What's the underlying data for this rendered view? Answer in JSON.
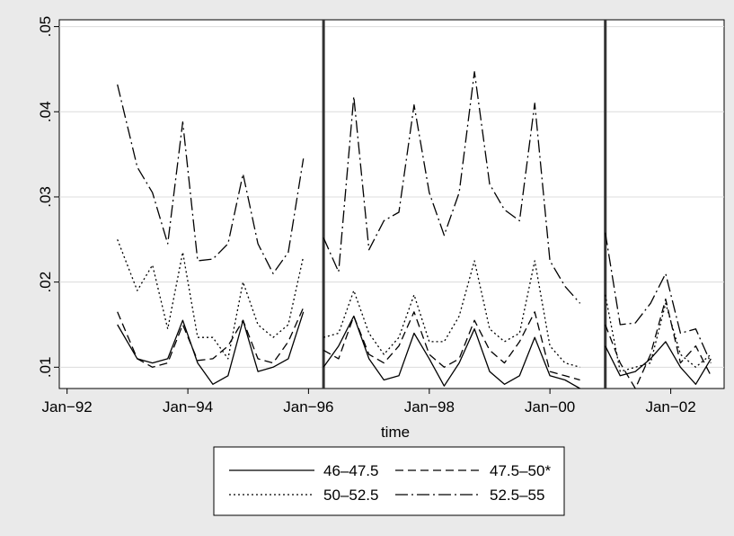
{
  "chart_data": {
    "type": "line",
    "xlabel": "time",
    "ylabel": "",
    "ylim": [
      0.0075,
      0.0508
    ],
    "yticks": [
      {
        "value": 0.01,
        "label": ".01"
      },
      {
        "value": 0.02,
        "label": ".02"
      },
      {
        "value": 0.03,
        "label": ".03"
      },
      {
        "value": 0.04,
        "label": ".04"
      },
      {
        "value": 0.05,
        "label": ".05"
      }
    ],
    "xlim": [
      "1991-11-15",
      "2002-11-20"
    ],
    "xticks": [
      {
        "value": "1992-01-01",
        "label": "Jan−92"
      },
      {
        "value": "1994-01-01",
        "label": "Jan−94"
      },
      {
        "value": "1996-01-01",
        "label": "Jan−96"
      },
      {
        "value": "1998-01-01",
        "label": "Jan−98"
      },
      {
        "value": "2000-01-01",
        "label": "Jan−00"
      },
      {
        "value": "2002-01-01",
        "label": "Jan−02"
      }
    ],
    "vertical_lines": [
      "1996-04-01",
      "2000-12-01"
    ],
    "grid": true,
    "legend_position": "bottom",
    "series": [
      {
        "name": "46‒47.5",
        "dash": "solid",
        "segments": [
          {
            "x": [
              "1992-11-01",
              "1993-03-01",
              "1993-06-01",
              "1993-09-01",
              "1993-12-01",
              "1994-03-01",
              "1994-06-01",
              "1994-09-01",
              "1994-12-01",
              "1995-03-01",
              "1995-06-01",
              "1995-09-01",
              "1995-12-01"
            ],
            "y": [
              0.015,
              0.011,
              0.0105,
              0.011,
              0.0155,
              0.0105,
              0.008,
              0.009,
              0.0155,
              0.0095,
              0.01,
              0.011,
              0.0165
            ]
          },
          {
            "x": [
              "1996-04-01",
              "1996-07-01",
              "1996-10-01",
              "1997-01-01",
              "1997-04-01",
              "1997-07-01",
              "1997-10-01",
              "1998-01-01",
              "1998-04-01",
              "1998-07-01",
              "1998-10-01",
              "1999-01-01",
              "1999-04-01",
              "1999-07-01",
              "1999-10-01",
              "2000-01-01",
              "2000-04-01",
              "2000-07-01"
            ],
            "y": [
              0.01,
              0.0125,
              0.016,
              0.011,
              0.0085,
              0.009,
              0.014,
              0.011,
              0.0078,
              0.0105,
              0.0145,
              0.0095,
              0.008,
              0.009,
              0.0135,
              0.009,
              0.0085,
              0.0075
            ]
          },
          {
            "x": [
              "2000-12-01",
              "2001-03-01",
              "2001-06-01",
              "2001-09-01",
              "2001-12-01",
              "2002-03-01",
              "2002-06-01",
              "2002-09-01"
            ],
            "y": [
              0.0125,
              0.009,
              0.0095,
              0.011,
              0.013,
              0.01,
              0.008,
              0.011
            ]
          }
        ]
      },
      {
        "name": "47.5‒50*",
        "dash": "dashed",
        "segments": [
          {
            "x": [
              "1992-11-01",
              "1993-03-01",
              "1993-06-01",
              "1993-09-01",
              "1993-12-01",
              "1994-03-01",
              "1994-06-01",
              "1994-09-01",
              "1994-12-01",
              "1995-03-01",
              "1995-06-01",
              "1995-09-01",
              "1995-12-01"
            ],
            "y": [
              0.0165,
              0.011,
              0.01,
              0.0105,
              0.015,
              0.0108,
              0.011,
              0.0125,
              0.0155,
              0.011,
              0.0105,
              0.013,
              0.017
            ]
          },
          {
            "x": [
              "1996-04-01",
              "1996-07-01",
              "1996-10-01",
              "1997-01-01",
              "1997-04-01",
              "1997-07-01",
              "1997-10-01",
              "1998-01-01",
              "1998-04-01",
              "1998-07-01",
              "1998-10-01",
              "1999-01-01",
              "1999-04-01",
              "1999-07-01",
              "1999-10-01",
              "2000-01-01",
              "2000-04-01",
              "2000-07-01"
            ],
            "y": [
              0.012,
              0.011,
              0.016,
              0.0115,
              0.0105,
              0.0125,
              0.0165,
              0.0115,
              0.01,
              0.011,
              0.0155,
              0.012,
              0.0105,
              0.013,
              0.0165,
              0.0095,
              0.009,
              0.0085
            ]
          },
          {
            "x": [
              "2000-12-01",
              "2001-03-01",
              "2001-06-01",
              "2001-09-01",
              "2001-12-01",
              "2002-03-01",
              "2002-06-01",
              "2002-09-01"
            ],
            "y": [
              0.015,
              0.0105,
              0.0075,
              0.0115,
              0.018,
              0.0105,
              0.0125,
              0.009
            ]
          }
        ]
      },
      {
        "name": "50‒52.5",
        "dash": "dotted",
        "segments": [
          {
            "x": [
              "1992-11-01",
              "1993-03-01",
              "1993-06-01",
              "1993-09-01",
              "1993-12-01",
              "1994-03-01",
              "1994-06-01",
              "1994-09-01",
              "1994-12-01",
              "1995-03-01",
              "1995-06-01",
              "1995-09-01",
              "1995-12-01"
            ],
            "y": [
              0.025,
              0.019,
              0.022,
              0.0145,
              0.0235,
              0.0135,
              0.0135,
              0.011,
              0.02,
              0.015,
              0.0135,
              0.015,
              0.023
            ]
          },
          {
            "x": [
              "1996-04-01",
              "1996-07-01",
              "1996-10-01",
              "1997-01-01",
              "1997-04-01",
              "1997-07-01",
              "1997-10-01",
              "1998-01-01",
              "1998-04-01",
              "1998-07-01",
              "1998-10-01",
              "1999-01-01",
              "1999-04-01",
              "1999-07-01",
              "1999-10-01",
              "2000-01-01",
              "2000-04-01",
              "2000-07-01"
            ],
            "y": [
              0.0135,
              0.014,
              0.019,
              0.014,
              0.0115,
              0.0135,
              0.0185,
              0.013,
              0.013,
              0.016,
              0.0225,
              0.0145,
              0.013,
              0.014,
              0.0225,
              0.0125,
              0.0105,
              0.01
            ]
          },
          {
            "x": [
              "2000-12-01",
              "2001-03-01",
              "2001-06-01",
              "2001-09-01",
              "2001-12-01",
              "2002-03-01",
              "2002-06-01",
              "2002-09-01"
            ],
            "y": [
              0.0185,
              0.0095,
              0.01,
              0.0105,
              0.0175,
              0.0115,
              0.01,
              0.0115
            ]
          }
        ]
      },
      {
        "name": "52.5‒55",
        "dash": "dashdot",
        "segments": [
          {
            "x": [
              "1992-11-01",
              "1993-03-01",
              "1993-06-01",
              "1993-09-01",
              "1993-12-01",
              "1994-03-01",
              "1994-06-01",
              "1994-09-01",
              "1994-12-01",
              "1995-03-01",
              "1995-06-01",
              "1995-09-01",
              "1995-12-01"
            ],
            "y": [
              0.0432,
              0.0335,
              0.0305,
              0.0245,
              0.0388,
              0.0225,
              0.0227,
              0.0245,
              0.0327,
              0.0245,
              0.021,
              0.0235,
              0.0345
            ]
          },
          {
            "x": [
              "1996-04-01",
              "1996-07-01",
              "1996-10-01",
              "1997-01-01",
              "1997-04-01",
              "1997-07-01",
              "1997-10-01",
              "1998-01-01",
              "1998-04-01",
              "1998-07-01",
              "1998-10-01",
              "1999-01-01",
              "1999-04-01",
              "1999-07-01",
              "1999-10-01",
              "2000-01-01",
              "2000-04-01",
              "2000-07-01"
            ],
            "y": [
              0.0252,
              0.0212,
              0.0418,
              0.0238,
              0.0272,
              0.0282,
              0.0408,
              0.0305,
              0.0255,
              0.0305,
              0.0447,
              0.0315,
              0.0285,
              0.0272,
              0.041,
              0.0225,
              0.0195,
              0.0175
            ]
          },
          {
            "x": [
              "2000-12-01",
              "2001-03-01",
              "2001-06-01",
              "2001-09-01",
              "2001-12-01",
              "2002-03-01",
              "2002-06-01",
              "2002-09-01"
            ],
            "y": [
              0.0258,
              0.015,
              0.0152,
              0.0175,
              0.021,
              0.014,
              0.0145,
              0.0105
            ]
          }
        ]
      }
    ]
  }
}
